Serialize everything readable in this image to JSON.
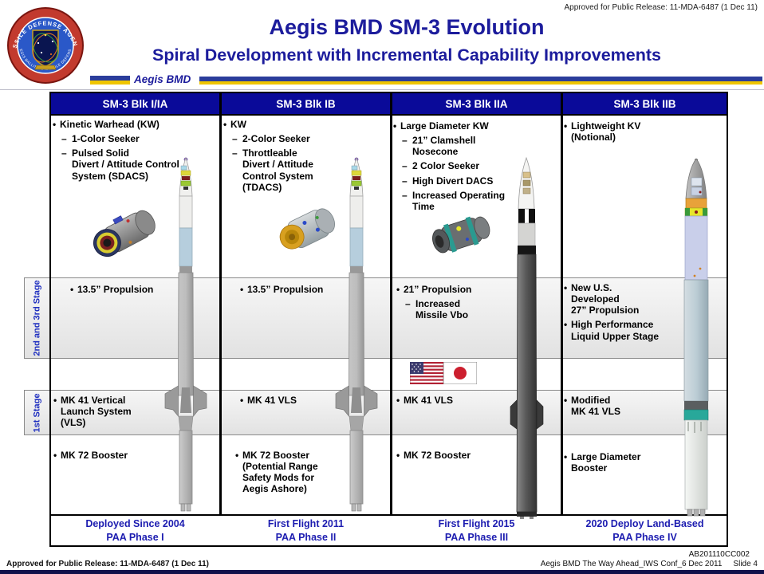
{
  "page": {
    "approval_top": "Approved for Public Release: 11-MDA-6487 (1 Dec 11)",
    "title": "Aegis BMD SM-3 Evolution",
    "subtitle": "Spiral Development with Incremental Capability Improvements",
    "program_label": "Aegis BMD",
    "footer_left": "Approved for Public Release: 11-MDA-6487 (1 Dec 11)",
    "footer_code": "AB201110CC002",
    "footer_doc": "Aegis BMD The Way Ahead_IWS Conf_6 Dec 2011",
    "slide_number": "Slide 4"
  },
  "logo": {
    "ring_top": "MISSILE DEFENSE AGENCY",
    "ring_bottom": "AEGIS BALLISTIC MISSILE DEFENSE"
  },
  "stage_labels": {
    "upper": "2nd and 3rd Stage",
    "lower": "1st Stage"
  },
  "colors": {
    "header_navy": "#0a0a99",
    "title_blue": "#1c1c9c",
    "footer_blue": "#1c1cb0",
    "stripe_blue": "#2b3d9b",
    "stripe_yellow": "#efc500"
  },
  "columns": [
    {
      "header": "SM-3 Blk I/IA",
      "kw_bullets": [
        {
          "level": 1,
          "text": "Kinetic Warhead (KW)"
        },
        {
          "level": 2,
          "text": "1-Color Seeker"
        },
        {
          "level": 2,
          "text": "Pulsed Solid\nDivert / Attitude Control\nSystem (SDACS)"
        }
      ],
      "propulsion_bullets": [
        {
          "level": 1,
          "text": "13.5” Propulsion"
        }
      ],
      "vls_bullets": [
        {
          "level": 1,
          "text": "MK 41 Vertical\nLaunch System\n(VLS)"
        }
      ],
      "booster_bullets": [
        {
          "level": 1,
          "text": "MK 72 Booster"
        }
      ],
      "footer_line1": "Deployed Since 2004",
      "footer_line2": "PAA Phase I"
    },
    {
      "header": "SM-3 Blk IB",
      "kw_bullets": [
        {
          "level": 1,
          "text": "KW"
        },
        {
          "level": 2,
          "text": "2-Color Seeker"
        },
        {
          "level": 2,
          "text": "Throttleable\nDivert / Attitude\nControl System\n(TDACS)"
        }
      ],
      "propulsion_bullets": [
        {
          "level": 1,
          "text": "13.5” Propulsion"
        }
      ],
      "vls_bullets": [
        {
          "level": 1,
          "text": "MK 41 VLS"
        }
      ],
      "booster_bullets": [
        {
          "level": 1,
          "text": "MK 72 Booster\n(Potential Range\nSafety Mods for\nAegis Ashore)"
        }
      ],
      "footer_line1": "First Flight 2011",
      "footer_line2": "PAA Phase II"
    },
    {
      "header": "SM-3 Blk IIA",
      "kw_bullets": [
        {
          "level": 1,
          "text": "Large Diameter KW"
        },
        {
          "level": 2,
          "text": "21” Clamshell\nNosecone"
        },
        {
          "level": 2,
          "text": "2 Color Seeker"
        },
        {
          "level": 2,
          "text": "High Divert DACS"
        },
        {
          "level": 2,
          "text": "Increased Operating\nTime"
        }
      ],
      "propulsion_bullets": [
        {
          "level": 1,
          "text": "21” Propulsion"
        },
        {
          "level": 2,
          "text": "Increased\nMissile Vbo"
        }
      ],
      "vls_bullets": [
        {
          "level": 1,
          "text": "MK 41 VLS"
        }
      ],
      "booster_bullets": [
        {
          "level": 1,
          "text": "MK 72 Booster"
        }
      ],
      "footer_line1": "First Flight 2015",
      "footer_line2": "PAA Phase III"
    },
    {
      "header": "SM-3 Blk IIB",
      "kw_bullets": [
        {
          "level": 1,
          "text": "Lightweight KV\n(Notional)"
        }
      ],
      "propulsion_bullets": [
        {
          "level": 1,
          "text": "New U.S.\nDeveloped\n27” Propulsion"
        },
        {
          "level": 1,
          "text": "High Performance\nLiquid Upper Stage"
        }
      ],
      "vls_bullets": [
        {
          "level": 1,
          "text": "Modified\nMK 41 VLS"
        }
      ],
      "booster_bullets": [
        {
          "level": 1,
          "text": "Large Diameter\nBooster"
        }
      ],
      "footer_line1": "2020 Deploy Land-Based",
      "footer_line2": "PAA Phase IV"
    }
  ]
}
